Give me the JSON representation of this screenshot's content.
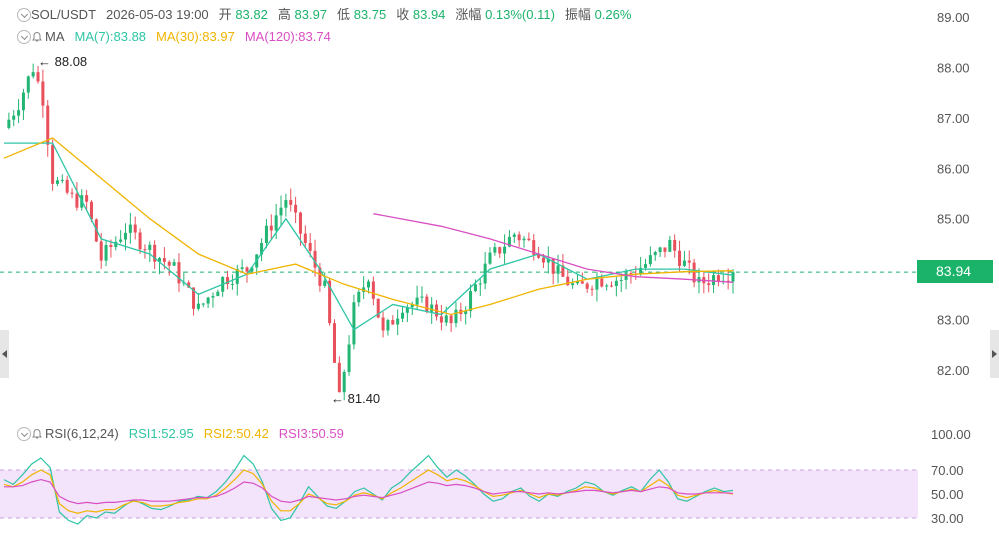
{
  "header": {
    "symbol": "SOL/USDT",
    "datetime": "2026-05-03 19:00",
    "open_label": "开",
    "open_value": "83.82",
    "high_label": "高",
    "high_value": "83.97",
    "low_label": "低",
    "low_value": "83.75",
    "close_label": "收",
    "close_value": "83.94",
    "change_label": "涨幅",
    "change_value": "0.13%(0.11)",
    "amplitude_label": "振幅",
    "amplitude_value": "0.26%"
  },
  "ma_legend": {
    "label": "MA",
    "ma7": "MA(7):83.88",
    "ma30": "MA(30):83.97",
    "ma120": "MA(120):83.74"
  },
  "rsi_legend": {
    "label": "RSI(6,12,24)",
    "rsi1": "RSI1:52.95",
    "rsi2": "RSI2:50.42",
    "rsi3": "RSI3:50.59"
  },
  "annotations": {
    "max_label": "88.08",
    "min_label": "81.40"
  },
  "current_price": "83.94",
  "colors": {
    "up": "#22b573",
    "down": "#e8505b",
    "ma7": "#2ec5a5",
    "ma30": "#f0b400",
    "ma120": "#d94fc3",
    "rsi1": "#2ec5a5",
    "rsi2": "#f0b400",
    "rsi3": "#d94fc3",
    "rsi_band": "#f3e3fb",
    "price_tag": "#1bb36a"
  },
  "chart_data": [
    {
      "type": "candlestick",
      "title": "SOL/USDT",
      "ylim": [
        81.4,
        89.0
      ],
      "y_ticks": [
        "89.00",
        "88.00",
        "87.00",
        "86.00",
        "85.00",
        "84.00",
        "83.00",
        "82.00"
      ],
      "grid": false,
      "current_price": 83.94,
      "approx_close_path": [
        [
          0,
          86.8
        ],
        [
          3,
          87.3
        ],
        [
          6,
          88.0
        ],
        [
          8,
          87.4
        ],
        [
          10,
          85.8
        ],
        [
          14,
          85.4
        ],
        [
          17,
          85.3
        ],
        [
          20,
          84.2
        ],
        [
          25,
          84.8
        ],
        [
          30,
          84.4
        ],
        [
          35,
          84.0
        ],
        [
          40,
          83.2
        ],
        [
          45,
          83.8
        ],
        [
          50,
          84.0
        ],
        [
          55,
          84.9
        ],
        [
          58,
          85.4
        ],
        [
          62,
          84.5
        ],
        [
          66,
          83.6
        ],
        [
          69,
          81.4
        ],
        [
          72,
          83.2
        ],
        [
          75,
          83.9
        ],
        [
          78,
          82.7
        ],
        [
          82,
          83.3
        ],
        [
          87,
          83.3
        ],
        [
          92,
          82.9
        ],
        [
          95,
          83.3
        ],
        [
          100,
          84.2
        ],
        [
          105,
          84.7
        ],
        [
          110,
          84.4
        ],
        [
          114,
          83.9
        ],
        [
          118,
          83.6
        ],
        [
          122,
          83.8
        ],
        [
          127,
          83.8
        ],
        [
          132,
          84.1
        ],
        [
          137,
          84.5
        ],
        [
          140,
          84.1
        ],
        [
          143,
          83.7
        ],
        [
          147,
          83.9
        ],
        [
          150,
          83.94
        ]
      ],
      "series": [
        {
          "name": "MA(7)",
          "points": [
            [
              0,
              86.5
            ],
            [
              10,
              86.5
            ],
            [
              20,
              84.6
            ],
            [
              30,
              84.3
            ],
            [
              40,
              83.5
            ],
            [
              50,
              83.9
            ],
            [
              58,
              85.0
            ],
            [
              65,
              84.0
            ],
            [
              72,
              82.8
            ],
            [
              80,
              83.3
            ],
            [
              90,
              83.1
            ],
            [
              100,
              84.0
            ],
            [
              110,
              84.3
            ],
            [
              120,
              83.8
            ],
            [
              130,
              84.0
            ],
            [
              140,
              84.0
            ],
            [
              150,
              83.88
            ]
          ]
        },
        {
          "name": "MA(30)",
          "points": [
            [
              0,
              86.2
            ],
            [
              10,
              86.6
            ],
            [
              20,
              85.8
            ],
            [
              30,
              85.0
            ],
            [
              40,
              84.3
            ],
            [
              50,
              83.9
            ],
            [
              60,
              84.1
            ],
            [
              70,
              83.7
            ],
            [
              80,
              83.4
            ],
            [
              92,
              83.1
            ],
            [
              100,
              83.3
            ],
            [
              110,
              83.6
            ],
            [
              120,
              83.8
            ],
            [
              130,
              83.9
            ],
            [
              140,
              83.95
            ],
            [
              150,
              83.97
            ]
          ]
        },
        {
          "name": "MA(120)",
          "points": [
            [
              76,
              85.1
            ],
            [
              90,
              84.85
            ],
            [
              100,
              84.6
            ],
            [
              110,
              84.3
            ],
            [
              120,
              84.0
            ],
            [
              130,
              83.85
            ],
            [
              140,
              83.8
            ],
            [
              150,
              83.74
            ]
          ]
        }
      ]
    },
    {
      "type": "line",
      "title": "RSI(6,12,24)",
      "ylim": [
        30,
        100
      ],
      "y_ticks": [
        "100.00",
        "70.00",
        "50.00",
        "30.00"
      ],
      "band": [
        30,
        70
      ],
      "series": [
        {
          "name": "RSI1",
          "values": [
            62,
            58,
            66,
            75,
            80,
            72,
            35,
            28,
            25,
            32,
            30,
            35,
            34,
            40,
            45,
            42,
            38,
            37,
            40,
            44,
            45,
            48,
            47,
            52,
            60,
            70,
            82,
            75,
            60,
            38,
            28,
            30,
            42,
            56,
            48,
            40,
            38,
            44,
            52,
            55,
            50,
            45,
            55,
            60,
            68,
            75,
            82,
            72,
            64,
            70,
            65,
            58,
            50,
            44,
            46,
            52,
            55,
            48,
            44,
            50,
            48,
            52,
            55,
            60,
            58,
            52,
            49,
            53,
            56,
            52,
            62,
            70,
            60,
            46,
            44,
            48,
            52,
            55,
            52,
            53
          ]
        },
        {
          "name": "RSI2",
          "values": [
            58,
            56,
            60,
            66,
            70,
            66,
            42,
            36,
            34,
            36,
            35,
            37,
            37,
            41,
            44,
            43,
            40,
            40,
            41,
            43,
            44,
            46,
            46,
            49,
            55,
            62,
            70,
            67,
            58,
            44,
            36,
            36,
            42,
            50,
            47,
            42,
            41,
            44,
            49,
            51,
            49,
            46,
            51,
            55,
            60,
            65,
            70,
            66,
            61,
            63,
            61,
            57,
            52,
            48,
            49,
            51,
            53,
            50,
            47,
            50,
            49,
            51,
            53,
            56,
            55,
            52,
            50,
            52,
            54,
            52,
            57,
            62,
            57,
            49,
            47,
            49,
            51,
            53,
            51,
            50
          ]
        },
        {
          "name": "RSI3",
          "values": [
            56,
            56,
            57,
            60,
            62,
            60,
            48,
            44,
            42,
            43,
            42,
            43,
            43,
            44,
            45,
            45,
            44,
            44,
            44,
            45,
            46,
            47,
            47,
            48,
            51,
            55,
            60,
            59,
            55,
            48,
            44,
            43,
            45,
            48,
            47,
            46,
            45,
            46,
            48,
            49,
            48,
            47,
            49,
            51,
            54,
            57,
            60,
            59,
            57,
            58,
            57,
            55,
            52,
            50,
            51,
            52,
            52,
            51,
            50,
            51,
            50,
            51,
            52,
            53,
            53,
            52,
            51,
            52,
            53,
            52,
            54,
            56,
            55,
            51,
            50,
            50,
            51,
            51,
            51,
            50.59
          ]
        }
      ]
    }
  ]
}
